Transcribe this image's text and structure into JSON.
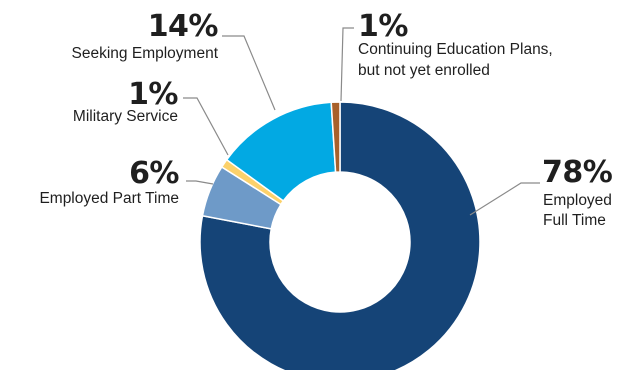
{
  "chart_data": {
    "type": "pie",
    "variant": "donut",
    "start_angle_deg": 0,
    "direction": "clockwise",
    "slices": [
      {
        "label": "Employed Full Time",
        "value": 78,
        "pct_text": "78%",
        "color": "#154477"
      },
      {
        "label": "Employed Part Time",
        "value": 6,
        "pct_text": "6%",
        "color": "#6e9ac8"
      },
      {
        "label": "Military Service",
        "value": 1,
        "pct_text": "1%",
        "color": "#fbd16b"
      },
      {
        "label": "Seeking Employment",
        "value": 14,
        "pct_text": "14%",
        "color": "#02a9e3"
      },
      {
        "label": "Continuing Education Plans, but not yet enrolled",
        "value": 1,
        "pct_text": "1%",
        "color": "#a8612b"
      }
    ],
    "legend": "none",
    "leader_line_color": "#8a8a8a"
  },
  "labels": {
    "full_time": {
      "pct": "78%",
      "line1": "Employed",
      "line2": "Full Time"
    },
    "part_time": {
      "pct": "6%",
      "line1": "Employed Part Time"
    },
    "military": {
      "pct": "1%",
      "line1": "Military Service"
    },
    "seeking": {
      "pct": "14%",
      "line1": "Seeking Employment"
    },
    "education": {
      "pct": "1%",
      "line1": "Continuing Education Plans,",
      "line2": "but not yet enrolled"
    }
  }
}
